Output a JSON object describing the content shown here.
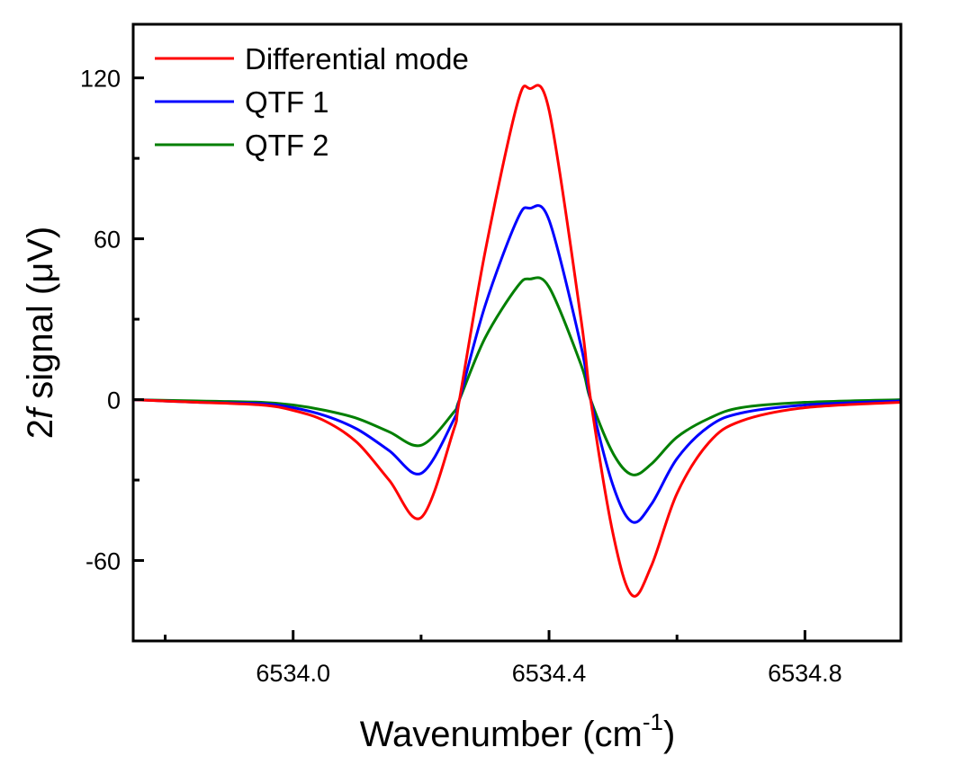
{
  "chart_data": {
    "type": "line",
    "title": "",
    "xlabel": "Wavenumber (cm",
    "xlabel_sup": "-1",
    "xlabel_close": ")",
    "ylabel_prefix": "2",
    "ylabel_italic": "f",
    "ylabel_rest": " signal (μV)",
    "xlim": [
      6533.75,
      6534.95
    ],
    "ylim": [
      -90,
      140
    ],
    "x_ticks": [
      6534.0,
      6534.4,
      6534.8
    ],
    "x_tick_labels": [
      "6534.0",
      "6534.4",
      "6534.8"
    ],
    "x_minor_ticks": [
      6533.8,
      6534.2,
      6534.6
    ],
    "y_ticks": [
      -60,
      0,
      60,
      120
    ],
    "y_tick_labels": [
      "-60",
      "0",
      "60",
      "120"
    ],
    "y_minor_ticks": [
      -30,
      30,
      90
    ],
    "grid": false,
    "legend_position": "top-left",
    "x": [
      6533.75,
      6533.85,
      6533.95,
      6534.0,
      6534.05,
      6534.1,
      6534.15,
      6534.2,
      6534.25,
      6534.26,
      6534.3,
      6534.35,
      6534.37,
      6534.4,
      6534.45,
      6534.465,
      6534.5,
      6534.53,
      6534.56,
      6534.6,
      6534.65,
      6534.7,
      6534.8,
      6534.95
    ],
    "series": [
      {
        "name": "Differential mode",
        "color": "#ff0000",
        "values": [
          0,
          -1,
          -2,
          -4,
          -8,
          -16,
          -30,
          -44,
          -12,
          0,
          55,
          110,
          116,
          108,
          30,
          0,
          -50,
          -73,
          -62,
          -35,
          -16,
          -8,
          -3,
          -1
        ]
      },
      {
        "name": "QTF 1",
        "color": "#0000ff",
        "values": [
          0,
          -1,
          -1.5,
          -3,
          -6,
          -11,
          -19,
          -27.5,
          -8,
          0,
          35,
          67,
          71.4,
          67,
          20,
          0,
          -32,
          -45.6,
          -39,
          -22,
          -10,
          -5,
          -2,
          -0.5
        ]
      },
      {
        "name": "QTF 2",
        "color": "#007f00",
        "values": [
          0,
          -0.5,
          -1,
          -2,
          -4,
          -7,
          -12,
          -17,
          -5,
          0,
          23,
          42,
          45,
          42,
          13,
          0,
          -20,
          -28,
          -24,
          -14,
          -7,
          -3,
          -1,
          0
        ]
      }
    ]
  }
}
